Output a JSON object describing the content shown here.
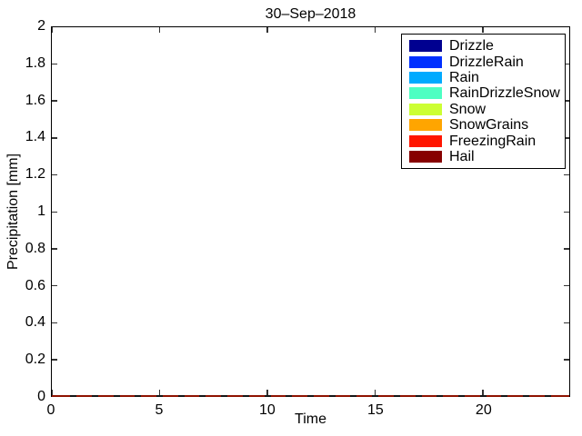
{
  "title": "30–Sep–2018",
  "axes": {
    "xlabel": "Time",
    "ylabel": "Precipitation [mm]",
    "x_range": [
      0,
      24
    ],
    "y_range": [
      0,
      2
    ],
    "x_tick_values": [
      0,
      5,
      10,
      15,
      20
    ],
    "y_ticks": [
      {
        "label": "0",
        "value": 0
      },
      {
        "label": "0.2",
        "value": 0.2
      },
      {
        "label": "0.4",
        "value": 0.4
      },
      {
        "label": "0.6",
        "value": 0.6
      },
      {
        "label": "0.8",
        "value": 0.8
      },
      {
        "label": "1",
        "value": 1
      },
      {
        "label": "1.2",
        "value": 1.2
      },
      {
        "label": "1.4",
        "value": 1.4
      },
      {
        "label": "1.6",
        "value": 1.6
      },
      {
        "label": "1.8",
        "value": 1.8
      },
      {
        "label": "2",
        "value": 2
      }
    ]
  },
  "legend": {
    "items": [
      {
        "label": "Drizzle",
        "color": "#000090"
      },
      {
        "label": "DrizzleRain",
        "color": "#0030FF"
      },
      {
        "label": "Rain",
        "color": "#00AAFF"
      },
      {
        "label": "RainDrizzleSnow",
        "color": "#4DFFC2"
      },
      {
        "label": "Snow",
        "color": "#CCFF33"
      },
      {
        "label": "SnowGrains",
        "color": "#FFA500"
      },
      {
        "label": "FreezingRain",
        "color": "#FF1600"
      },
      {
        "label": "Hail",
        "color": "#870000"
      }
    ]
  },
  "baseline": {
    "line_color": "#8E1200",
    "hour_mark_color": "#151515"
  },
  "chart_data": {
    "type": "bar",
    "title": "30–Sep–2018",
    "xlabel": "Time",
    "ylabel": "Precipitation [mm]",
    "xlim": [
      0,
      24
    ],
    "ylim": [
      0,
      2
    ],
    "grid": false,
    "legend_position": "upper-right",
    "x": [
      0,
      1,
      2,
      3,
      4,
      5,
      6,
      7,
      8,
      9,
      10,
      11,
      12,
      13,
      14,
      15,
      16,
      17,
      18,
      19,
      20,
      21,
      22,
      23
    ],
    "series": [
      {
        "name": "Drizzle",
        "color": "#000090",
        "values": [
          0,
          0,
          0,
          0,
          0,
          0,
          0,
          0,
          0,
          0,
          0,
          0,
          0,
          0,
          0,
          0,
          0,
          0,
          0,
          0,
          0,
          0,
          0,
          0
        ]
      },
      {
        "name": "DrizzleRain",
        "color": "#0030FF",
        "values": [
          0,
          0,
          0,
          0,
          0,
          0,
          0,
          0,
          0,
          0,
          0,
          0,
          0,
          0,
          0,
          0,
          0,
          0,
          0,
          0,
          0,
          0,
          0,
          0
        ]
      },
      {
        "name": "Rain",
        "color": "#00AAFF",
        "values": [
          0,
          0,
          0,
          0,
          0,
          0,
          0,
          0,
          0,
          0,
          0,
          0,
          0,
          0,
          0,
          0,
          0,
          0,
          0,
          0,
          0,
          0,
          0,
          0
        ]
      },
      {
        "name": "RainDrizzleSnow",
        "color": "#4DFFC2",
        "values": [
          0,
          0,
          0,
          0,
          0,
          0,
          0,
          0,
          0,
          0,
          0,
          0,
          0,
          0,
          0,
          0,
          0,
          0,
          0,
          0,
          0,
          0,
          0,
          0
        ]
      },
      {
        "name": "Snow",
        "color": "#CCFF33",
        "values": [
          0,
          0,
          0,
          0,
          0,
          0,
          0,
          0,
          0,
          0,
          0,
          0,
          0,
          0,
          0,
          0,
          0,
          0,
          0,
          0,
          0,
          0,
          0,
          0
        ]
      },
      {
        "name": "SnowGrains",
        "color": "#FFA500",
        "values": [
          0,
          0,
          0,
          0,
          0,
          0,
          0,
          0,
          0,
          0,
          0,
          0,
          0,
          0,
          0,
          0,
          0,
          0,
          0,
          0,
          0,
          0,
          0,
          0
        ]
      },
      {
        "name": "FreezingRain",
        "color": "#FF1600",
        "values": [
          0,
          0,
          0,
          0,
          0,
          0,
          0,
          0,
          0,
          0,
          0,
          0,
          0,
          0,
          0,
          0,
          0,
          0,
          0,
          0,
          0,
          0,
          0,
          0
        ]
      },
      {
        "name": "Hail",
        "color": "#870000",
        "values": [
          0,
          0,
          0,
          0,
          0,
          0,
          0,
          0,
          0,
          0,
          0,
          0,
          0,
          0,
          0,
          0,
          0,
          0,
          0,
          0,
          0,
          0,
          0,
          0
        ]
      }
    ]
  }
}
